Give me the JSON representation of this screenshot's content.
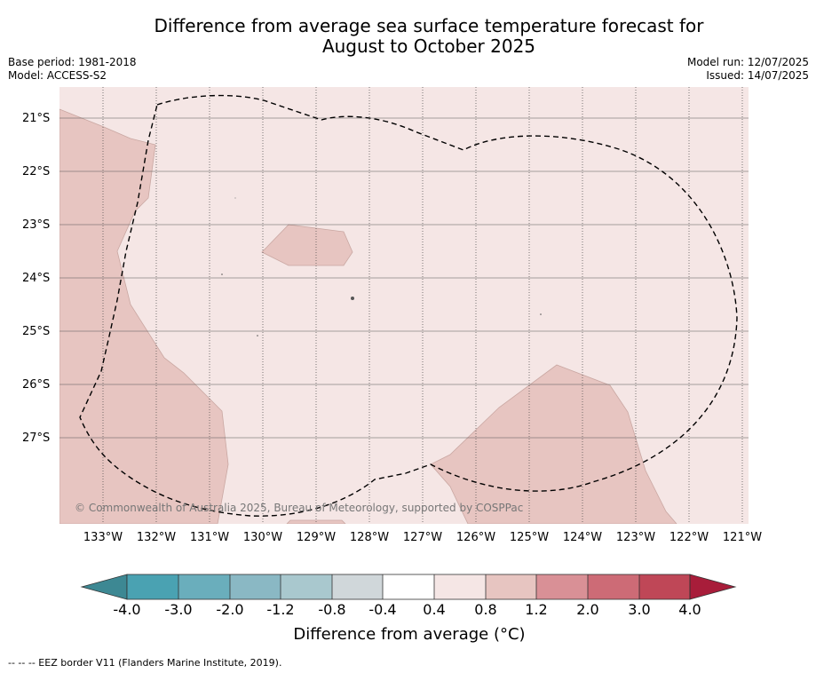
{
  "title_line1": "Difference from average sea surface temperature forecast for",
  "title_line2": "August to October 2025",
  "base_period": "Base period: 1981-2018",
  "model": "Model: ACCESS-S2",
  "model_run": "Model run: 12/07/2025",
  "issued": "Issued: 14/07/2025",
  "copyright": "© Commonwealth of Australia 2025, Bureau of Meteorology, supported by COSPPac",
  "lat_labels": [
    "21°S",
    "22°S",
    "23°S",
    "24°S",
    "25°S",
    "26°S",
    "27°S"
  ],
  "lon_labels": [
    "133°W",
    "132°W",
    "131°W",
    "130°W",
    "129°W",
    "128°W",
    "127°W",
    "126°W",
    "125°W",
    "124°W",
    "123°W",
    "122°W",
    "121°W"
  ],
  "colorbar": {
    "ticks": [
      "-4.0",
      "-3.0",
      "-2.0",
      "-1.2",
      "-0.8",
      "-0.4",
      "0.4",
      "0.8",
      "1.2",
      "2.0",
      "3.0",
      "4.0"
    ],
    "colors": [
      "#3d8893",
      "#4aa2b2",
      "#6aaebc",
      "#8ab8c4",
      "#a9c8ce",
      "#d0d7da",
      "#ffffff",
      "#f5e6e5",
      "#e7c5c1",
      "#d99096",
      "#cd6b76",
      "#bf4757",
      "#a81d3a"
    ],
    "title": "Difference from average ($^\\circ$C)",
    "title_display": "Difference from average (°C)"
  },
  "legend": "--  --  -- EEZ border V11 (Flanders Marine Institute, 2019).",
  "map_colors": {
    "background": "#f5e6e5",
    "warm_band": "#e7c5c1",
    "gridline": "#444444"
  }
}
